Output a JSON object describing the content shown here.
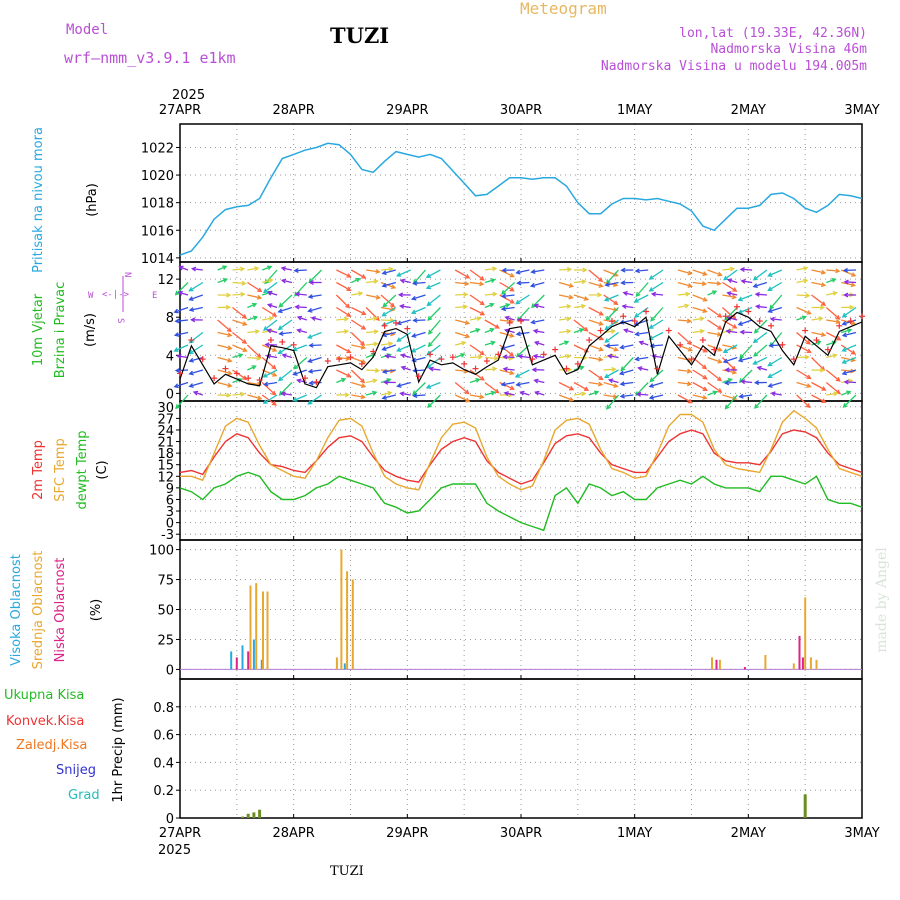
{
  "header": {
    "model_label": "Model",
    "model_name": "wrf–nmm_v3.9.1  e1km",
    "station": "TUZI",
    "title": "Meteogram",
    "lonlat": "lon,lat (19.33E, 42.36N)",
    "elevation": "Nadmorska Visina 46m",
    "model_elevation": "Nadmorska Visina u modelu 194.005m",
    "credit": "made by Angel",
    "footer_station": "TUZI"
  },
  "time_axis": {
    "top_year": "2025",
    "bottom_year": "2025",
    "labels": [
      "27APR",
      "28APR",
      "29APR",
      "30APR",
      "1MAY",
      "2MAY",
      "3MAY"
    ]
  },
  "panel_labels": {
    "pressure": [
      {
        "text": "Pritisak na nivou mora",
        "color": "#29a8e0"
      }
    ],
    "pressure_unit": "(hPa)",
    "wind": [
      {
        "text": "10m Vjetar",
        "color": "#22bb22"
      },
      {
        "text": "Brzina i Pravac",
        "color": "#22bb22"
      }
    ],
    "wind_unit": "(m/s)",
    "compass": {
      "n": "N",
      "s": "S",
      "w": "W",
      "e": "E"
    },
    "temp": [
      {
        "text": "2m Temp",
        "color": "#ee3333"
      },
      {
        "text": "SFC Temp",
        "color": "#e8a830"
      },
      {
        "text": "dewpt Temp",
        "color": "#22bb22"
      }
    ],
    "temp_unit": "(C)",
    "cloud": [
      {
        "text": "Visoka Oblacnost",
        "color": "#29a8e0"
      },
      {
        "text": "Srednja Oblacnost",
        "color": "#e8a830"
      },
      {
        "text": "Niska Oblacnost",
        "color": "#dd2288"
      }
    ],
    "cloud_unit": "(%)",
    "precip_legend": [
      {
        "text": "Ukupna Kisa",
        "color": "#22bb22"
      },
      {
        "text": "Konvek.Kisa",
        "color": "#ee3333"
      },
      {
        "text": "Zaledj.Kisa",
        "color": "#ee7722"
      },
      {
        "text": "Snijeg",
        "color": "#3333cc"
      },
      {
        "text": "Grad",
        "color": "#22bbbb"
      }
    ],
    "precip_unit": "1hr Precip (mm)"
  },
  "colors": {
    "pressure_line": "#29a8e0",
    "temp2m": "#ee3333",
    "sfc_temp": "#e8a830",
    "dewpoint": "#22bb22",
    "gust_marker": "#ee3333",
    "speed_line": "#000000",
    "cloud_high": "#29a8e0",
    "cloud_mid": "#e8a830",
    "cloud_low": "#dd2288",
    "precip_total": "#6b8e23"
  },
  "chart_data": [
    {
      "type": "line",
      "panel": "pressure",
      "ylabel": "(hPa)",
      "ylim": [
        1013.7,
        1023.7
      ],
      "yticks": [
        1014,
        1016,
        1018,
        1020,
        1022
      ],
      "x_days": [
        0,
        0.1,
        0.2,
        0.3,
        0.4,
        0.5,
        0.6,
        0.7,
        0.8,
        0.9,
        1.0,
        1.1,
        1.2,
        1.3,
        1.4,
        1.5,
        1.6,
        1.7,
        1.8,
        1.9,
        2.0,
        2.1,
        2.2,
        2.3,
        2.4,
        2.5,
        2.6,
        2.7,
        2.8,
        2.9,
        3.0,
        3.1,
        3.2,
        3.3,
        3.4,
        3.5,
        3.6,
        3.7,
        3.8,
        3.9,
        4.0,
        4.1,
        4.2,
        4.3,
        4.4,
        4.5,
        4.6,
        4.7,
        4.8,
        4.9,
        5.0,
        5.1,
        5.2,
        5.3,
        5.4,
        5.5,
        5.6,
        5.7,
        5.8,
        5.9,
        6.0
      ],
      "series": [
        {
          "values": [
            1014.2,
            1014.5,
            1015.5,
            1016.8,
            1017.5,
            1017.7,
            1017.8,
            1018.3,
            1019.8,
            1021.2,
            1021.5,
            1021.8,
            1022.0,
            1022.3,
            1022.2,
            1021.5,
            1020.4,
            1020.2,
            1021.0,
            1021.7,
            1021.5,
            1021.3,
            1021.5,
            1021.2,
            1020.3,
            1019.4,
            1018.5,
            1018.6,
            1019.2,
            1019.8,
            1019.8,
            1019.7,
            1019.8,
            1019.8,
            1019.2,
            1018.0,
            1017.2,
            1017.2,
            1017.9,
            1018.3,
            1018.3,
            1018.2,
            1018.3,
            1018.1,
            1017.9,
            1017.4,
            1016.3,
            1016.0,
            1016.8,
            1017.6,
            1017.6,
            1017.8,
            1018.6,
            1018.7,
            1018.3,
            1017.6,
            1017.3,
            1017.8,
            1018.6,
            1018.5,
            1018.3
          ]
        }
      ]
    },
    {
      "type": "line",
      "panel": "wind",
      "ylabel": "(m/s)",
      "ylim": [
        -0.8,
        13.8
      ],
      "yticks": [
        0,
        4,
        8,
        12
      ],
      "x_days": [
        0,
        0.1,
        0.2,
        0.3,
        0.4,
        0.5,
        0.6,
        0.7,
        0.8,
        0.9,
        1.0,
        1.1,
        1.2,
        1.3,
        1.4,
        1.5,
        1.6,
        1.7,
        1.8,
        1.9,
        2.0,
        2.1,
        2.2,
        2.3,
        2.4,
        2.5,
        2.6,
        2.7,
        2.8,
        2.9,
        3.0,
        3.1,
        3.2,
        3.3,
        3.4,
        3.5,
        3.6,
        3.7,
        3.8,
        3.9,
        4.0,
        4.1,
        4.2,
        4.3,
        4.4,
        4.5,
        4.6,
        4.7,
        4.8,
        4.9,
        5.0,
        5.1,
        5.2,
        5.3,
        5.4,
        5.5,
        5.6,
        5.7,
        5.8,
        5.9,
        6.0
      ],
      "series": [
        {
          "values": [
            1.5,
            5.0,
            3.0,
            1.0,
            2.0,
            1.5,
            1.0,
            0.8,
            5.0,
            4.8,
            4.5,
            1.0,
            0.6,
            2.8,
            3.0,
            3.2,
            2.5,
            3.8,
            6.5,
            6.8,
            6.2,
            1.2,
            3.5,
            3.0,
            3.2,
            2.5,
            2.0,
            2.8,
            3.5,
            6.8,
            7.0,
            3.0,
            3.5,
            4.0,
            2.0,
            2.5,
            5.0,
            6.0,
            7.0,
            7.5,
            7.0,
            8.0,
            2.0,
            6.0,
            4.5,
            3.0,
            5.0,
            4.0,
            7.5,
            8.5,
            8.0,
            7.0,
            6.5,
            4.5,
            3.0,
            6.0,
            5.0,
            4.0,
            6.5,
            7.0,
            7.5
          ]
        }
      ]
    },
    {
      "type": "line",
      "panel": "temperature",
      "ylabel": "(C)",
      "ylim": [
        -4.5,
        31.5
      ],
      "yticks": [
        -3,
        0,
        3,
        6,
        9,
        12,
        15,
        18,
        21,
        24,
        27,
        30
      ],
      "x_days": [
        0,
        0.1,
        0.2,
        0.3,
        0.4,
        0.5,
        0.6,
        0.7,
        0.8,
        0.9,
        1.0,
        1.1,
        1.2,
        1.3,
        1.4,
        1.5,
        1.6,
        1.7,
        1.8,
        1.9,
        2.0,
        2.1,
        2.2,
        2.3,
        2.4,
        2.5,
        2.6,
        2.7,
        2.8,
        2.9,
        3.0,
        3.1,
        3.2,
        3.3,
        3.4,
        3.5,
        3.6,
        3.7,
        3.8,
        3.9,
        4.0,
        4.1,
        4.2,
        4.3,
        4.4,
        4.5,
        4.6,
        4.7,
        4.8,
        4.9,
        5.0,
        5.1,
        5.2,
        5.3,
        5.4,
        5.5,
        5.6,
        5.7,
        5.8,
        5.9,
        6.0
      ],
      "series": [
        {
          "name": "2m Temp",
          "values": [
            13,
            13.5,
            12.5,
            17,
            21,
            23,
            22,
            18,
            15,
            14.5,
            13.5,
            13,
            16,
            19.5,
            22,
            22.5,
            21,
            17,
            13.5,
            12,
            11,
            10.5,
            15,
            19,
            21,
            22,
            21,
            16,
            13,
            11.5,
            10,
            11,
            15.5,
            20.5,
            22.5,
            23,
            22,
            18,
            15,
            14,
            13,
            13,
            17,
            21,
            23,
            24,
            23,
            18,
            16,
            15.5,
            15.5,
            15,
            18.5,
            23,
            24,
            23.5,
            22,
            18,
            15,
            14,
            13
          ]
        },
        {
          "name": "SFC Temp",
          "values": [
            12,
            12,
            11,
            18,
            25,
            27,
            26,
            20,
            15,
            13.5,
            12,
            11.5,
            16,
            22,
            26.5,
            27,
            25,
            18,
            12,
            10,
            9,
            8.5,
            15.5,
            22,
            25.5,
            26,
            24.5,
            17,
            12,
            10,
            8.5,
            9.5,
            16,
            24,
            26.5,
            27,
            25.5,
            19,
            14,
            13,
            11.5,
            12,
            18,
            25,
            28,
            28,
            26,
            19,
            15,
            14,
            13.5,
            13,
            19,
            26,
            29,
            27,
            24.5,
            19,
            14,
            13,
            12
          ]
        },
        {
          "name": "dewpt Temp",
          "values": [
            9,
            8,
            6,
            9,
            10,
            12,
            13,
            12,
            8,
            6,
            6,
            7,
            9,
            10,
            12,
            11,
            10,
            9,
            5,
            4,
            2.5,
            3,
            6,
            9,
            10,
            10,
            10,
            5,
            3,
            1.5,
            0,
            -1,
            -2,
            7,
            9,
            5,
            10,
            9,
            7,
            8,
            6,
            6,
            9,
            10,
            11,
            10,
            12,
            10,
            9,
            9,
            9,
            8,
            12,
            12,
            11,
            10,
            12,
            6,
            5,
            5,
            4
          ]
        }
      ]
    },
    {
      "type": "bar",
      "panel": "cloud_cover",
      "ylabel": "(%)",
      "ylim": [
        -8,
        108
      ],
      "yticks": [
        0,
        25,
        50,
        75,
        100
      ],
      "series": [
        {
          "name": "Visoka Oblacnost",
          "x_days": [
            0.45,
            0.55,
            0.65,
            0.72,
            1.45,
            5.45
          ],
          "values": [
            15,
            20,
            25,
            8,
            5,
            10
          ]
        },
        {
          "name": "Srednja Oblacnost",
          "x_days": [
            0.62,
            0.67,
            0.73,
            0.77,
            1.38,
            1.42,
            1.47,
            1.52,
            4.68,
            4.75,
            5.15,
            5.4,
            5.5,
            5.55,
            5.6
          ],
          "values": [
            70,
            72,
            65,
            65,
            10,
            100,
            82,
            75,
            10,
            8,
            12,
            5,
            60,
            10,
            8
          ]
        },
        {
          "name": "Niska Oblacnost",
          "x_days": [
            0.5,
            0.6,
            4.72,
            4.97,
            5.45,
            5.48
          ],
          "values": [
            10,
            15,
            8,
            2,
            28,
            10
          ]
        }
      ]
    },
    {
      "type": "bar",
      "panel": "precipitation",
      "ylabel": "1hr Precip (mm)",
      "ylim": [
        0,
        1.0
      ],
      "yticks": [
        0,
        0.2,
        0.4,
        0.6,
        0.8
      ],
      "series": [
        {
          "name": "Ukupna Kisa",
          "x_days": [
            0.55,
            0.6,
            0.65,
            0.7,
            5.5
          ],
          "values": [
            0.01,
            0.03,
            0.04,
            0.06,
            0.17
          ]
        }
      ]
    }
  ]
}
